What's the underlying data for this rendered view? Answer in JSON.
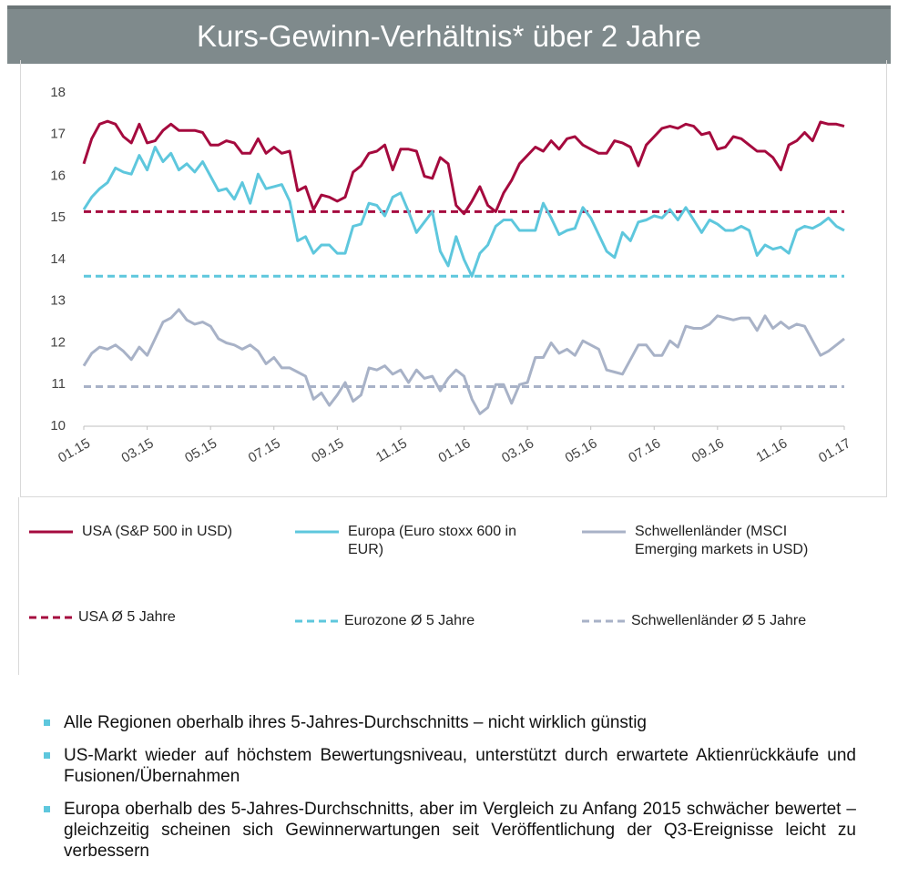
{
  "chart_data": {
    "type": "line",
    "title": "Kurs-Gewinn-Verhältnis* über 2 Jahre",
    "categories": [
      "01.15",
      null,
      null,
      null,
      null,
      null,
      null,
      null,
      "03.15",
      null,
      null,
      null,
      null,
      null,
      null,
      null,
      "05.15",
      null,
      null,
      null,
      null,
      null,
      null,
      null,
      "07.15",
      null,
      null,
      null,
      null,
      null,
      null,
      null,
      "09.15",
      null,
      null,
      null,
      null,
      null,
      null,
      null,
      "11.15",
      null,
      null,
      null,
      null,
      null,
      null,
      null,
      "01.16",
      null,
      null,
      null,
      null,
      null,
      null,
      null,
      "03.16",
      null,
      null,
      null,
      null,
      null,
      null,
      null,
      "05.16",
      null,
      null,
      null,
      null,
      null,
      null,
      null,
      "07.16",
      null,
      null,
      null,
      null,
      null,
      null,
      null,
      "09.16",
      null,
      null,
      null,
      null,
      null,
      null,
      null,
      "11.16",
      null,
      null,
      null,
      null,
      null,
      null,
      null,
      "01.17"
    ],
    "series": [
      {
        "name": "USA (S&P 500 in USD)",
        "color": "#a50a3e",
        "values": [
          16.3,
          16.9,
          17.25,
          17.32,
          17.25,
          16.95,
          16.8,
          17.25,
          16.8,
          16.85,
          17.1,
          17.25,
          17.1,
          17.1,
          17.1,
          17.05,
          16.75,
          16.75,
          16.85,
          16.8,
          16.55,
          16.55,
          16.9,
          16.55,
          16.7,
          16.55,
          16.6,
          15.65,
          15.75,
          15.2,
          15.55,
          15.5,
          15.4,
          15.5,
          16.1,
          16.25,
          16.55,
          16.6,
          16.75,
          16.15,
          16.65,
          16.65,
          16.6,
          16.0,
          15.95,
          16.45,
          16.3,
          15.3,
          15.1,
          15.4,
          15.75,
          15.3,
          15.15,
          15.6,
          15.9,
          16.3,
          16.5,
          16.7,
          16.6,
          16.85,
          16.65,
          16.9,
          16.95,
          16.75,
          16.65,
          16.55,
          16.55,
          16.85,
          16.8,
          16.7,
          16.25,
          16.75,
          16.95,
          17.15,
          17.2,
          17.15,
          17.25,
          17.2,
          17.0,
          17.05,
          16.65,
          16.7,
          16.95,
          16.9,
          16.75,
          16.6,
          16.6,
          16.45,
          16.15,
          16.75,
          16.85,
          17.05,
          16.85,
          17.3,
          17.25,
          17.25,
          17.2
        ]
      },
      {
        "name": "Europa (Euro stoxx 600 in EUR)",
        "color": "#5ec7dd",
        "values": [
          15.2,
          15.5,
          15.7,
          15.85,
          16.2,
          16.1,
          16.05,
          16.5,
          16.15,
          16.7,
          16.35,
          16.55,
          16.15,
          16.3,
          16.1,
          16.35,
          16.0,
          15.65,
          15.7,
          15.45,
          15.85,
          15.35,
          16.05,
          15.7,
          15.75,
          15.8,
          15.4,
          14.45,
          14.55,
          14.15,
          14.35,
          14.35,
          14.15,
          14.15,
          14.8,
          14.85,
          15.35,
          15.3,
          15.05,
          15.5,
          15.6,
          15.15,
          14.65,
          14.9,
          15.15,
          14.2,
          13.85,
          14.55,
          14.0,
          13.6,
          14.15,
          14.35,
          14.8,
          14.95,
          14.95,
          14.7,
          14.7,
          14.7,
          15.35,
          15.0,
          14.6,
          14.7,
          14.75,
          15.25,
          15.0,
          14.6,
          14.2,
          14.05,
          14.65,
          14.45,
          14.9,
          14.95,
          15.05,
          15.0,
          15.2,
          14.95,
          15.25,
          14.95,
          14.65,
          14.95,
          14.85,
          14.7,
          14.7,
          14.8,
          14.7,
          14.1,
          14.35,
          14.25,
          14.3,
          14.15,
          14.7,
          14.8,
          14.75,
          14.85,
          15.0,
          14.8,
          14.7
        ]
      },
      {
        "name": "Schwellenländer (MSCI Emerging markets in USD)",
        "color": "#a8b2c7",
        "values": [
          11.45,
          11.75,
          11.9,
          11.85,
          11.95,
          11.8,
          11.6,
          11.9,
          11.7,
          12.1,
          12.5,
          12.6,
          12.8,
          12.55,
          12.45,
          12.5,
          12.4,
          12.1,
          12.0,
          11.95,
          11.85,
          11.95,
          11.8,
          11.5,
          11.65,
          11.4,
          11.4,
          11.3,
          11.2,
          10.65,
          10.8,
          10.5,
          10.75,
          11.05,
          10.6,
          10.75,
          11.4,
          11.35,
          11.45,
          11.25,
          11.35,
          11.05,
          11.35,
          11.15,
          11.2,
          10.85,
          11.15,
          11.35,
          11.2,
          10.65,
          10.3,
          10.45,
          11.0,
          11.0,
          10.55,
          11.0,
          11.05,
          11.65,
          11.65,
          12.0,
          11.75,
          11.85,
          11.7,
          12.05,
          11.95,
          11.85,
          11.35,
          11.3,
          11.25,
          11.6,
          11.95,
          11.95,
          11.7,
          11.7,
          12.05,
          11.9,
          12.4,
          12.35,
          12.35,
          12.45,
          12.65,
          12.6,
          12.55,
          12.6,
          12.6,
          12.3,
          12.65,
          12.35,
          12.5,
          12.35,
          12.45,
          12.4,
          12.05,
          11.7,
          11.8,
          11.95,
          12.1
        ]
      }
    ],
    "reference_lines": [
      {
        "name": "USA Ø 5 Jahre",
        "value": 15.15,
        "color": "#a50a3e"
      },
      {
        "name": "Eurozone Ø 5 Jahre",
        "value": 13.6,
        "color": "#5ec7dd"
      },
      {
        "name": "Schwellenländer Ø 5 Jahre",
        "value": 10.95,
        "color": "#a8b2c7"
      }
    ],
    "ylim": [
      10,
      18
    ],
    "yticks": [
      10,
      11,
      12,
      13,
      14,
      15,
      16,
      17,
      18
    ],
    "bullets": [
      "Alle Regionen oberhalb ihres 5-Jahres-Durchschnitts – nicht wirklich günstig",
      "US-Markt wieder auf höchstem Bewertungsniveau, unterstützt durch erwartete Aktienrückkäufe und Fusionen/Übernahmen",
      "Europa oberhalb des 5-Jahres-Durchschnitts, aber im Vergleich zu Anfang 2015 schwächer bewertet – gleichzeitig scheinen sich Gewinnerwartungen seit Veröffentlichung der Q3-Ereignisse leicht zu verbessern"
    ]
  }
}
